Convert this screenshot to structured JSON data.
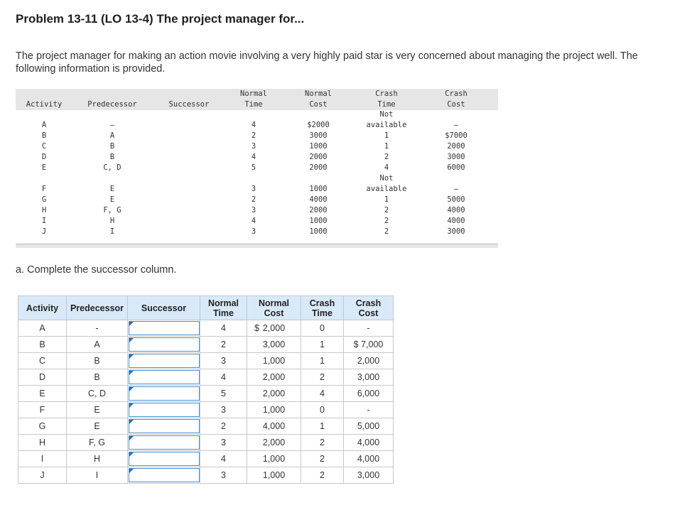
{
  "title": "Problem 13-11 (LO 13-4) The project manager for...",
  "intro": "The project manager for making an action movie involving a very highly paid star is very concerned about managing the project well. The following information is provided.",
  "mono_table": {
    "headers": {
      "activity": "Activity",
      "predecessor": "Predecessor",
      "successor": "Successor",
      "normal_time_1": "Normal",
      "normal_time_2": "Time",
      "normal_cost_1": "Normal",
      "normal_cost_2": "Cost",
      "crash_time_1": "Crash",
      "crash_time_2": "Time",
      "crash_cost_1": "Crash",
      "crash_cost_2": "Cost"
    },
    "rows": [
      {
        "activity": "A",
        "predecessor": "–",
        "normal_time": "4",
        "normal_cost": "$2000",
        "crash_time_top": "Not",
        "crash_time": "available",
        "crash_cost": "–"
      },
      {
        "activity": "B",
        "predecessor": "A",
        "normal_time": "2",
        "normal_cost": "3000",
        "crash_time_top": "",
        "crash_time": "1",
        "crash_cost": "$7000"
      },
      {
        "activity": "C",
        "predecessor": "B",
        "normal_time": "3",
        "normal_cost": "1000",
        "crash_time_top": "",
        "crash_time": "1",
        "crash_cost": "2000"
      },
      {
        "activity": "D",
        "predecessor": "B",
        "normal_time": "4",
        "normal_cost": "2000",
        "crash_time_top": "",
        "crash_time": "2",
        "crash_cost": "3000"
      },
      {
        "activity": "E",
        "predecessor": "C, D",
        "normal_time": "5",
        "normal_cost": "2000",
        "crash_time_top": "",
        "crash_time": "4",
        "crash_cost": "6000"
      },
      {
        "activity": "F",
        "predecessor": "E",
        "normal_time": "3",
        "normal_cost": "1000",
        "crash_time_top": "Not",
        "crash_time": "available",
        "crash_cost": "–"
      },
      {
        "activity": "G",
        "predecessor": "E",
        "normal_time": "2",
        "normal_cost": "4000",
        "crash_time_top": "",
        "crash_time": "1",
        "crash_cost": "5000"
      },
      {
        "activity": "H",
        "predecessor": "F, G",
        "normal_time": "3",
        "normal_cost": "2000",
        "crash_time_top": "",
        "crash_time": "2",
        "crash_cost": "4000"
      },
      {
        "activity": "I",
        "predecessor": "H",
        "normal_time": "4",
        "normal_cost": "1000",
        "crash_time_top": "",
        "crash_time": "2",
        "crash_cost": "4000"
      },
      {
        "activity": "J",
        "predecessor": "I",
        "normal_time": "3",
        "normal_cost": "1000",
        "crash_time_top": "",
        "crash_time": "2",
        "crash_cost": "3000"
      }
    ]
  },
  "part_a": "a. Complete the successor column.",
  "answer_table": {
    "headers": {
      "activity": "Activity",
      "predecessor": "Predecessor",
      "successor": "Successor",
      "normal_time_1": "Normal",
      "normal_time_2": "Time",
      "normal_cost_1": "Normal",
      "normal_cost_2": "Cost",
      "crash_time_1": "Crash",
      "crash_time_2": "Time",
      "crash_cost_1": "Crash",
      "crash_cost_2": "Cost"
    },
    "currency_symbol": "$",
    "rows": [
      {
        "activity": "A",
        "predecessor": "-",
        "successor": "",
        "normal_time": "4",
        "normal_cost": "2,000",
        "crash_time": "0",
        "crash_cost": "-"
      },
      {
        "activity": "B",
        "predecessor": "A",
        "successor": "",
        "normal_time": "2",
        "normal_cost": "3,000",
        "crash_time": "1",
        "crash_cost": "$ 7,000"
      },
      {
        "activity": "C",
        "predecessor": "B",
        "successor": "",
        "normal_time": "3",
        "normal_cost": "1,000",
        "crash_time": "1",
        "crash_cost": "2,000"
      },
      {
        "activity": "D",
        "predecessor": "B",
        "successor": "",
        "normal_time": "4",
        "normal_cost": "2,000",
        "crash_time": "2",
        "crash_cost": "3,000"
      },
      {
        "activity": "E",
        "predecessor": "C, D",
        "successor": "",
        "normal_time": "5",
        "normal_cost": "2,000",
        "crash_time": "4",
        "crash_cost": "6,000"
      },
      {
        "activity": "F",
        "predecessor": "E",
        "successor": "",
        "normal_time": "3",
        "normal_cost": "1,000",
        "crash_time": "0",
        "crash_cost": "-"
      },
      {
        "activity": "G",
        "predecessor": "E",
        "successor": "",
        "normal_time": "2",
        "normal_cost": "4,000",
        "crash_time": "1",
        "crash_cost": "5,000"
      },
      {
        "activity": "H",
        "predecessor": "F, G",
        "successor": "",
        "normal_time": "3",
        "normal_cost": "2,000",
        "crash_time": "2",
        "crash_cost": "4,000"
      },
      {
        "activity": "I",
        "predecessor": "H",
        "successor": "",
        "normal_time": "4",
        "normal_cost": "1,000",
        "crash_time": "2",
        "crash_cost": "4,000"
      },
      {
        "activity": "J",
        "predecessor": "I",
        "successor": "",
        "normal_time": "3",
        "normal_cost": "1,000",
        "crash_time": "2",
        "crash_cost": "3,000"
      }
    ]
  }
}
